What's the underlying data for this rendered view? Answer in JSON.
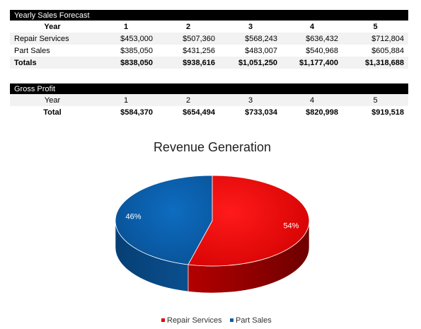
{
  "sales": {
    "title": "Yearly Sales Forecast",
    "header": [
      "Year",
      "1",
      "2",
      "3",
      "4",
      "5"
    ],
    "rows": [
      {
        "label": "Repair Services",
        "values": [
          "$453,000",
          "$507,360",
          "$568,243",
          "$636,432",
          "$712,804"
        ]
      },
      {
        "label": "Part Sales",
        "values": [
          "$385,050",
          "$431,256",
          "$483,007",
          "$540,968",
          "$605,884"
        ]
      },
      {
        "label": "Totals",
        "values": [
          "$838,050",
          "$938,616",
          "$1,051,250",
          "$1,177,400",
          "$1,318,688"
        ]
      }
    ]
  },
  "profit": {
    "title": "Gross Profit",
    "header": [
      "Year",
      "1",
      "2",
      "3",
      "4",
      "5"
    ],
    "total": {
      "label": "Total",
      "values": [
        "$584,370",
        "$654,494",
        "$733,034",
        "$820,998",
        "$919,518"
      ]
    }
  },
  "chart_data": {
    "type": "pie",
    "title": "Revenue Generation",
    "categories": [
      "Repair Services",
      "Part Sales"
    ],
    "values": [
      54,
      46
    ],
    "labels": [
      "54%",
      "46%"
    ],
    "colors": [
      "#e60000",
      "#0a5fa8"
    ],
    "legend_position": "bottom"
  }
}
